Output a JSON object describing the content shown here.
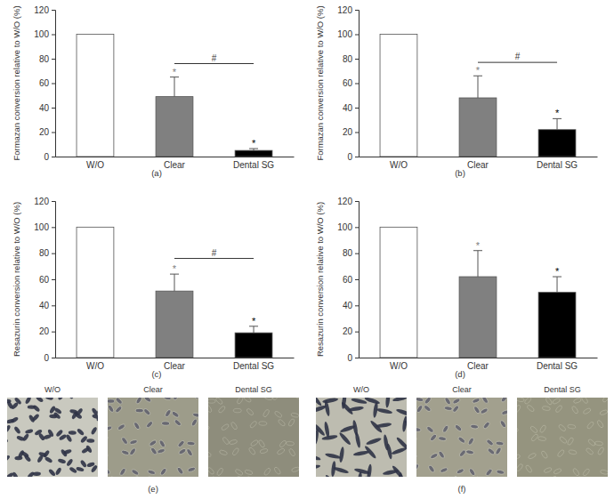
{
  "chart_data": [
    {
      "type": "bar",
      "title": "(a)",
      "y_label": "Formazan conversion relative to W/O (%)",
      "categories": [
        "W/O",
        "Clear",
        "Dental SG"
      ],
      "values": [
        100,
        49,
        5
      ],
      "errors": [
        null,
        16,
        1.5
      ],
      "colors": [
        "#ffffff",
        "#808080",
        "#000000"
      ],
      "significance": [
        null,
        "*",
        "*"
      ],
      "brackets": [
        {
          "between": [
            "Clear",
            "Dental SG"
          ],
          "label": "#",
          "y": 76
        }
      ],
      "ylim": [
        0,
        120
      ],
      "yticks": [
        0,
        20,
        40,
        60,
        80,
        100,
        120
      ]
    },
    {
      "type": "bar",
      "title": "(b)",
      "y_label": "Formazan conversion relative to W/O (%)",
      "categories": [
        "W/O",
        "Clear",
        "Dental SG"
      ],
      "values": [
        100,
        48,
        22
      ],
      "errors": [
        null,
        18,
        9
      ],
      "colors": [
        "#ffffff",
        "#808080",
        "#000000"
      ],
      "significance": [
        null,
        "*",
        "*"
      ],
      "brackets": [
        {
          "between": [
            "Clear",
            "Dental SG"
          ],
          "label": "#",
          "y": 77
        }
      ],
      "ylim": [
        0,
        120
      ],
      "yticks": [
        0,
        20,
        40,
        60,
        80,
        100,
        120
      ]
    },
    {
      "type": "bar",
      "title": "(c)",
      "y_label": "Resazurin conversion relative to W/O (%)",
      "categories": [
        "W/O",
        "Clear",
        "Dental SG"
      ],
      "values": [
        100,
        51,
        19
      ],
      "errors": [
        null,
        13,
        5
      ],
      "colors": [
        "#ffffff",
        "#808080",
        "#000000"
      ],
      "significance": [
        null,
        "*",
        "*"
      ],
      "brackets": [
        {
          "between": [
            "Clear",
            "Dental SG"
          ],
          "label": "#",
          "y": 76
        }
      ],
      "ylim": [
        0,
        120
      ],
      "yticks": [
        0,
        20,
        40,
        60,
        80,
        100,
        120
      ]
    },
    {
      "type": "bar",
      "title": "(d)",
      "y_label": "Resazurin conversion relative to W/O (%)",
      "categories": [
        "W/O",
        "Clear",
        "Dental SG"
      ],
      "values": [
        100,
        62,
        50
      ],
      "errors": [
        null,
        20,
        12
      ],
      "colors": [
        "#ffffff",
        "#808080",
        "#000000"
      ],
      "significance": [
        null,
        "*",
        "*"
      ],
      "ylim": [
        0,
        120
      ],
      "yticks": [
        0,
        20,
        40,
        60,
        80,
        100,
        120
      ]
    }
  ],
  "image_panels": [
    {
      "caption": "(e)",
      "labels": [
        "W/O",
        "Clear",
        "Dental SG"
      ]
    },
    {
      "caption": "(f)",
      "labels": [
        "W/O",
        "Clear",
        "Dental SG"
      ]
    }
  ]
}
